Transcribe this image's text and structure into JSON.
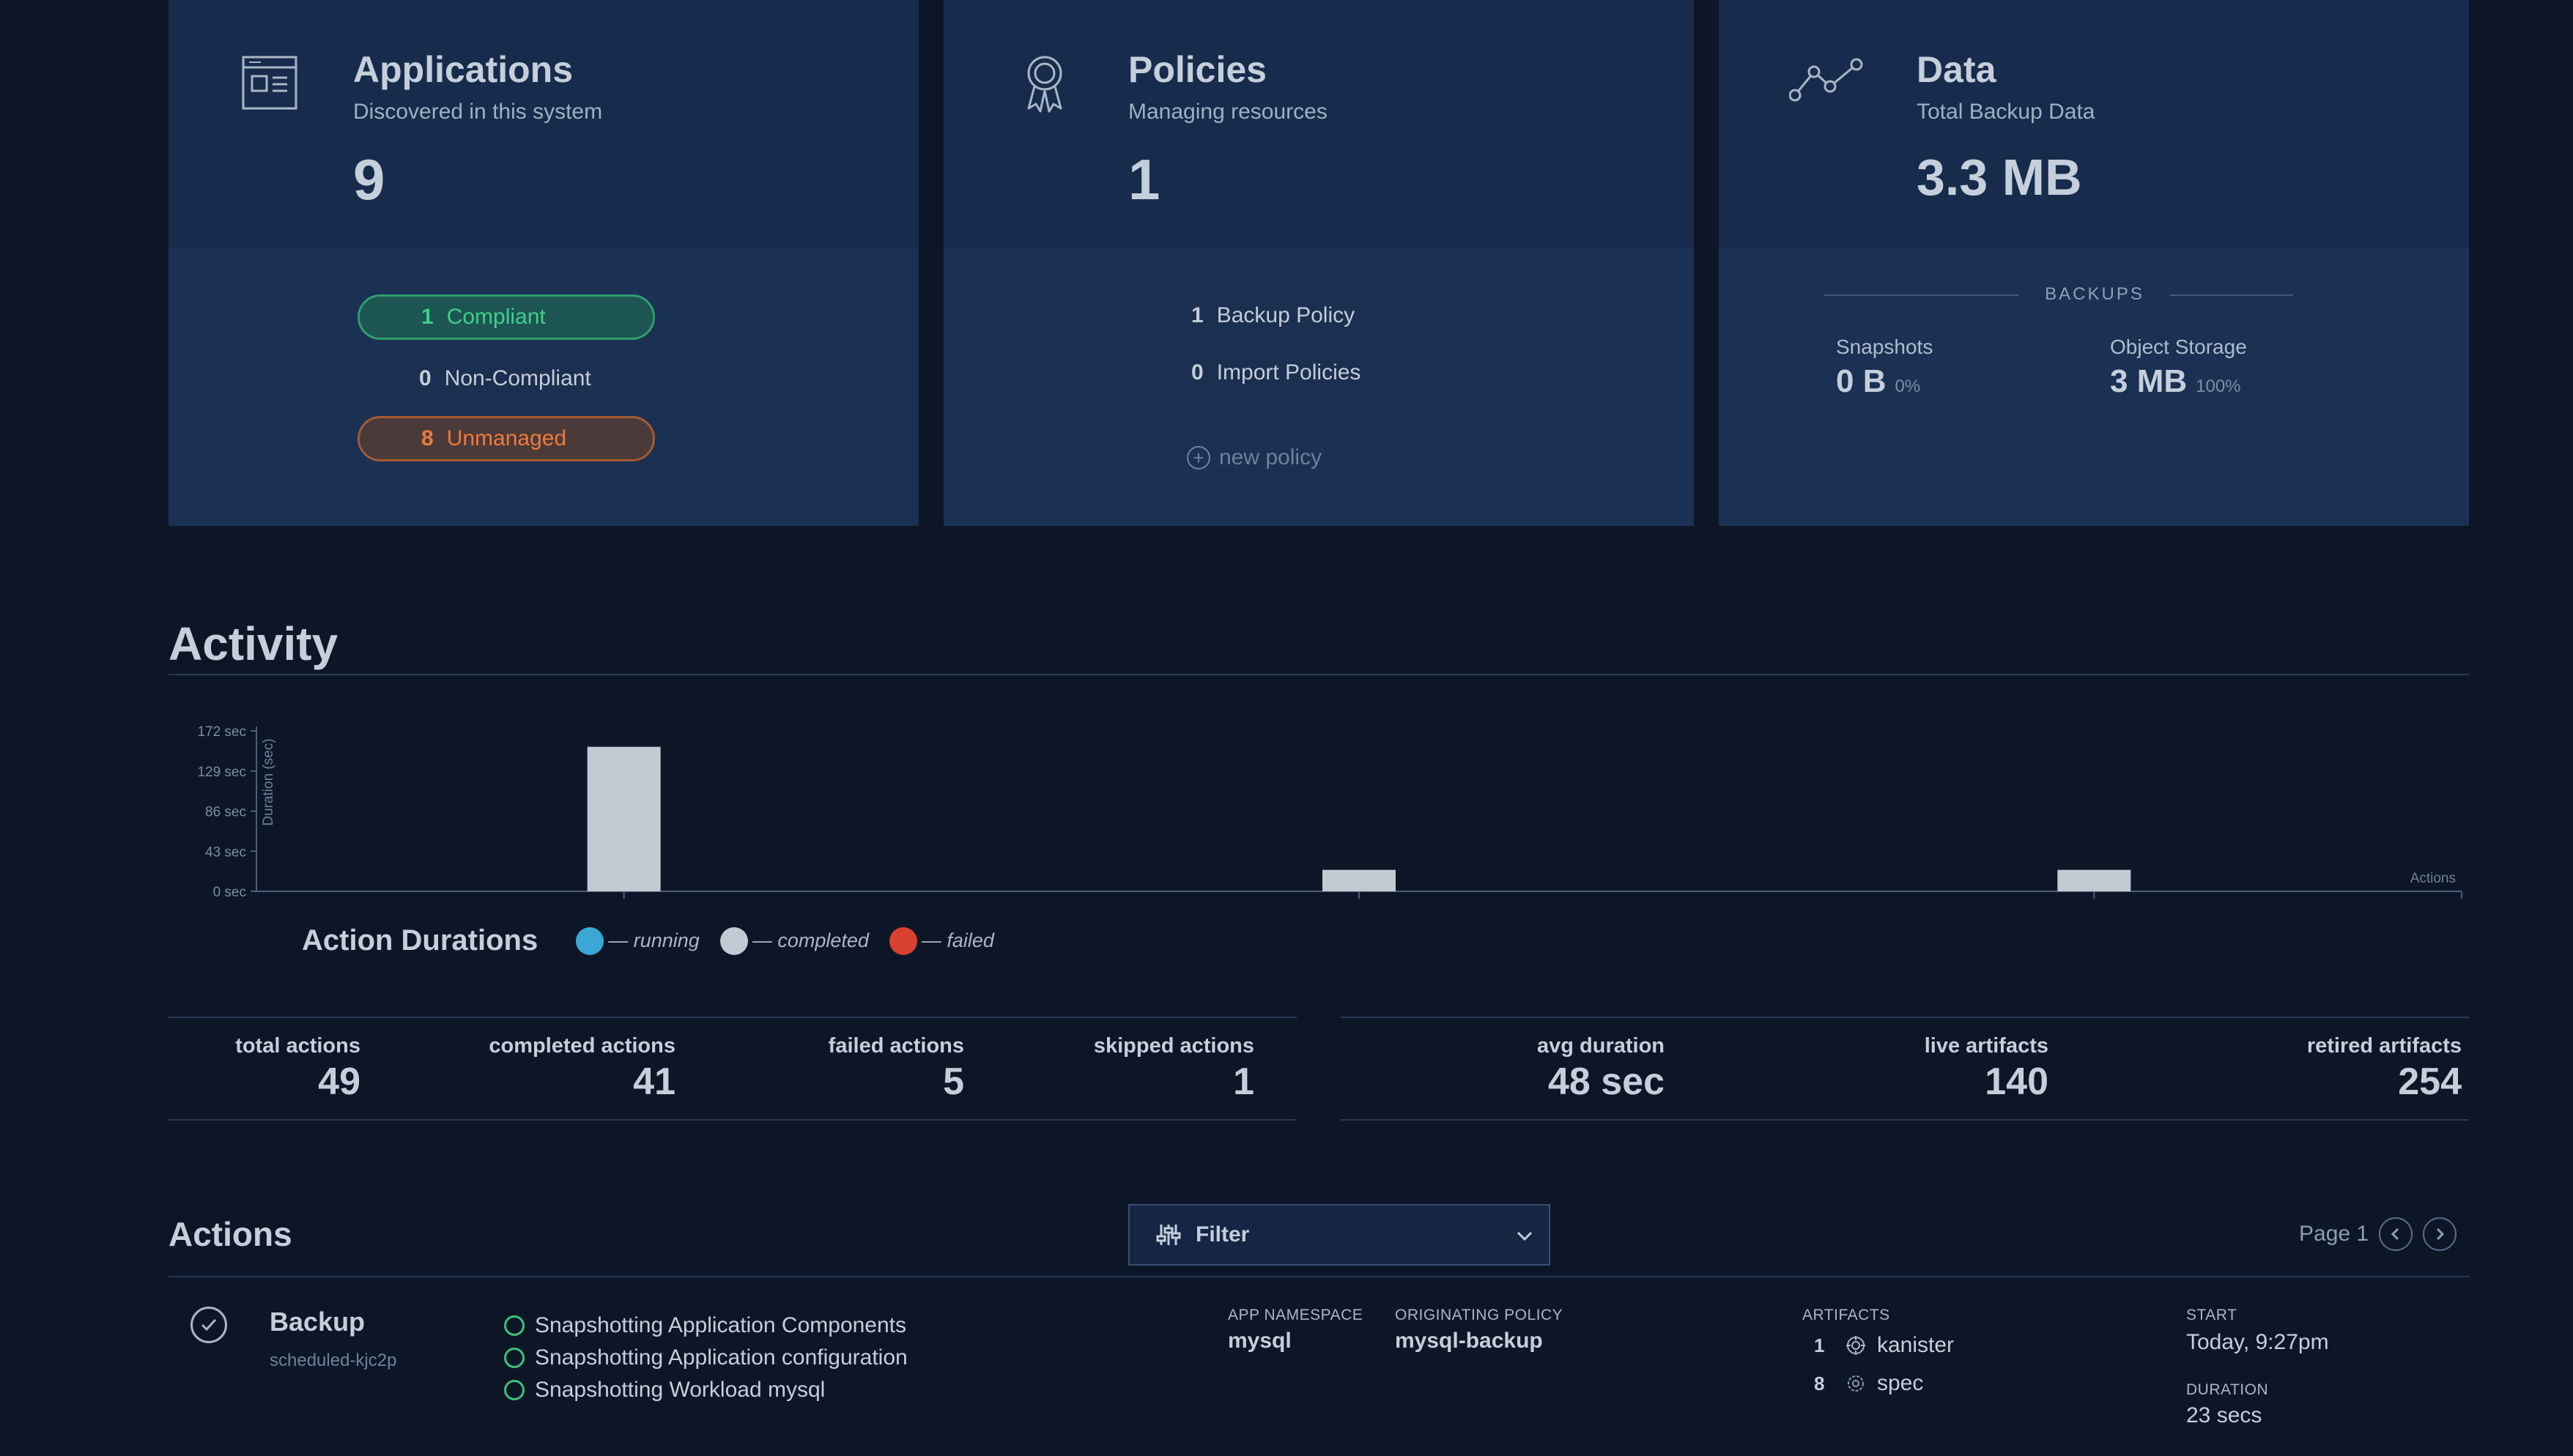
{
  "cards": {
    "applications": {
      "title": "Applications",
      "subtitle": "Discovered in this system",
      "count": "9",
      "pills": [
        {
          "num": "1",
          "label": "Compliant"
        },
        {
          "num": "0",
          "label": "Non-Compliant"
        },
        {
          "num": "8",
          "label": "Unmanaged"
        }
      ]
    },
    "policies": {
      "title": "Policies",
      "subtitle": "Managing resources",
      "count": "1",
      "pills": [
        {
          "num": "1",
          "label": "Backup Policy"
        },
        {
          "num": "0",
          "label": "Import Policies"
        }
      ],
      "new_policy": "new policy"
    },
    "data": {
      "title": "Data",
      "subtitle": "Total Backup Data",
      "total": "3.3 MB",
      "backups_label": "BACKUPS",
      "snapshots_label": "Snapshots",
      "snapshots_value": "0 B",
      "snapshots_pct": "0%",
      "object_label": "Object Storage",
      "object_value": "3 MB",
      "object_pct": "100%"
    }
  },
  "activity": {
    "title": "Activity",
    "legend_title": "Action Durations",
    "legend": [
      {
        "label": "— running",
        "color": "#3aa7d6"
      },
      {
        "label": "— completed",
        "color": "#c2cad3"
      },
      {
        "label": "— failed",
        "color": "#d8412f"
      }
    ]
  },
  "chart_data": {
    "type": "bar",
    "ylabel": "Duration (sec)",
    "xlabel": "Actions",
    "yticks": [
      "0 sec",
      "43 sec",
      "86 sec",
      "129 sec",
      "172 sec"
    ],
    "ylim": [
      0,
      172
    ],
    "series": [
      {
        "values": [
          155,
          23,
          23
        ],
        "color": "#c2cad3"
      }
    ],
    "categories": [
      "",
      "",
      ""
    ],
    "grid": false
  },
  "stats": {
    "left": [
      {
        "label": "total actions",
        "value": "49"
      },
      {
        "label": "completed actions",
        "value": "41"
      },
      {
        "label": "failed actions",
        "value": "5"
      },
      {
        "label": "skipped actions",
        "value": "1"
      }
    ],
    "right": [
      {
        "label": "avg duration",
        "value": "48 sec"
      },
      {
        "label": "live artifacts",
        "value": "140"
      },
      {
        "label": "retired artifacts",
        "value": "254"
      }
    ]
  },
  "actions": {
    "title": "Actions",
    "filter_label": "Filter",
    "page_label": "Page 1",
    "rows": [
      {
        "title": "Backup",
        "subtitle": "scheduled-kjc2p",
        "steps": [
          "Snapshotting Application Components",
          "Snapshotting Application configuration",
          "Snapshotting Workload mysql"
        ],
        "namespace_label": "APP NAMESPACE",
        "namespace": "mysql",
        "policy_label": "ORIGINATING POLICY",
        "policy": "mysql-backup",
        "artifacts_label": "ARTIFACTS",
        "artifacts": [
          {
            "num": "1",
            "name": "kanister",
            "icon": "kanister-icon"
          },
          {
            "num": "8",
            "name": "spec",
            "icon": "spec-gear-icon"
          }
        ],
        "start_label": "START",
        "start": "Today, 9:27pm",
        "duration_label": "DURATION",
        "duration": "23 secs"
      }
    ]
  }
}
